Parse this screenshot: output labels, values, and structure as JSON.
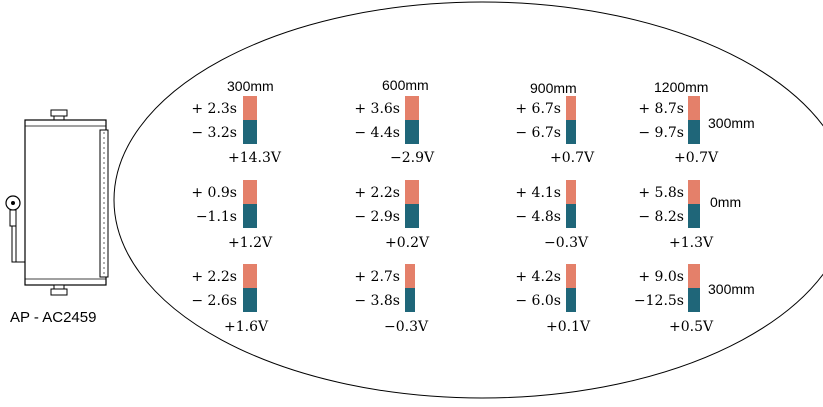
{
  "device": {
    "label": "AP - AC2459"
  },
  "column_headers": [
    "300mm",
    "600mm",
    "900mm",
    "1200mm"
  ],
  "row_labels": [
    "300mm",
    "0mm",
    "300mm"
  ],
  "colors": {
    "positive_bar": "#E4806A",
    "negative_bar": "#1F6679",
    "outline": "#000000"
  },
  "grid": [
    [
      {
        "plus": "+ 2.3s",
        "minus": "− 3.2s",
        "volt": "+14.3V"
      },
      {
        "plus": "+ 3.6s",
        "minus": "− 4.4s",
        "volt": "−2.9V"
      },
      {
        "plus": "+ 6.7s",
        "minus": "− 6.7s",
        "volt": "+0.7V"
      },
      {
        "plus": "+ 8.7s",
        "minus": "− 9.7s",
        "volt": "+0.7V"
      }
    ],
    [
      {
        "plus": "+ 0.9s",
        "minus": "−1.1s",
        "volt": "+1.2V"
      },
      {
        "plus": "+ 2.2s",
        "minus": "− 2.9s",
        "volt": "+0.2V"
      },
      {
        "plus": "+ 4.1s",
        "minus": "− 4.8s",
        "volt": "−0.3V"
      },
      {
        "plus": "+ 5.8s",
        "minus": "− 8.2s",
        "volt": "+1.3V"
      }
    ],
    [
      {
        "plus": "+ 2.2s",
        "minus": "− 2.6s",
        "volt": "+1.6V"
      },
      {
        "plus": "+ 2.7s",
        "minus": "− 3.8s",
        "volt": "−0.3V"
      },
      {
        "plus": "+ 4.2s",
        "minus": "− 6.0s",
        "volt": "+0.1V"
      },
      {
        "plus": "+ 9.0s",
        "minus": "−12.5s",
        "volt": "+0.5V"
      }
    ]
  ]
}
